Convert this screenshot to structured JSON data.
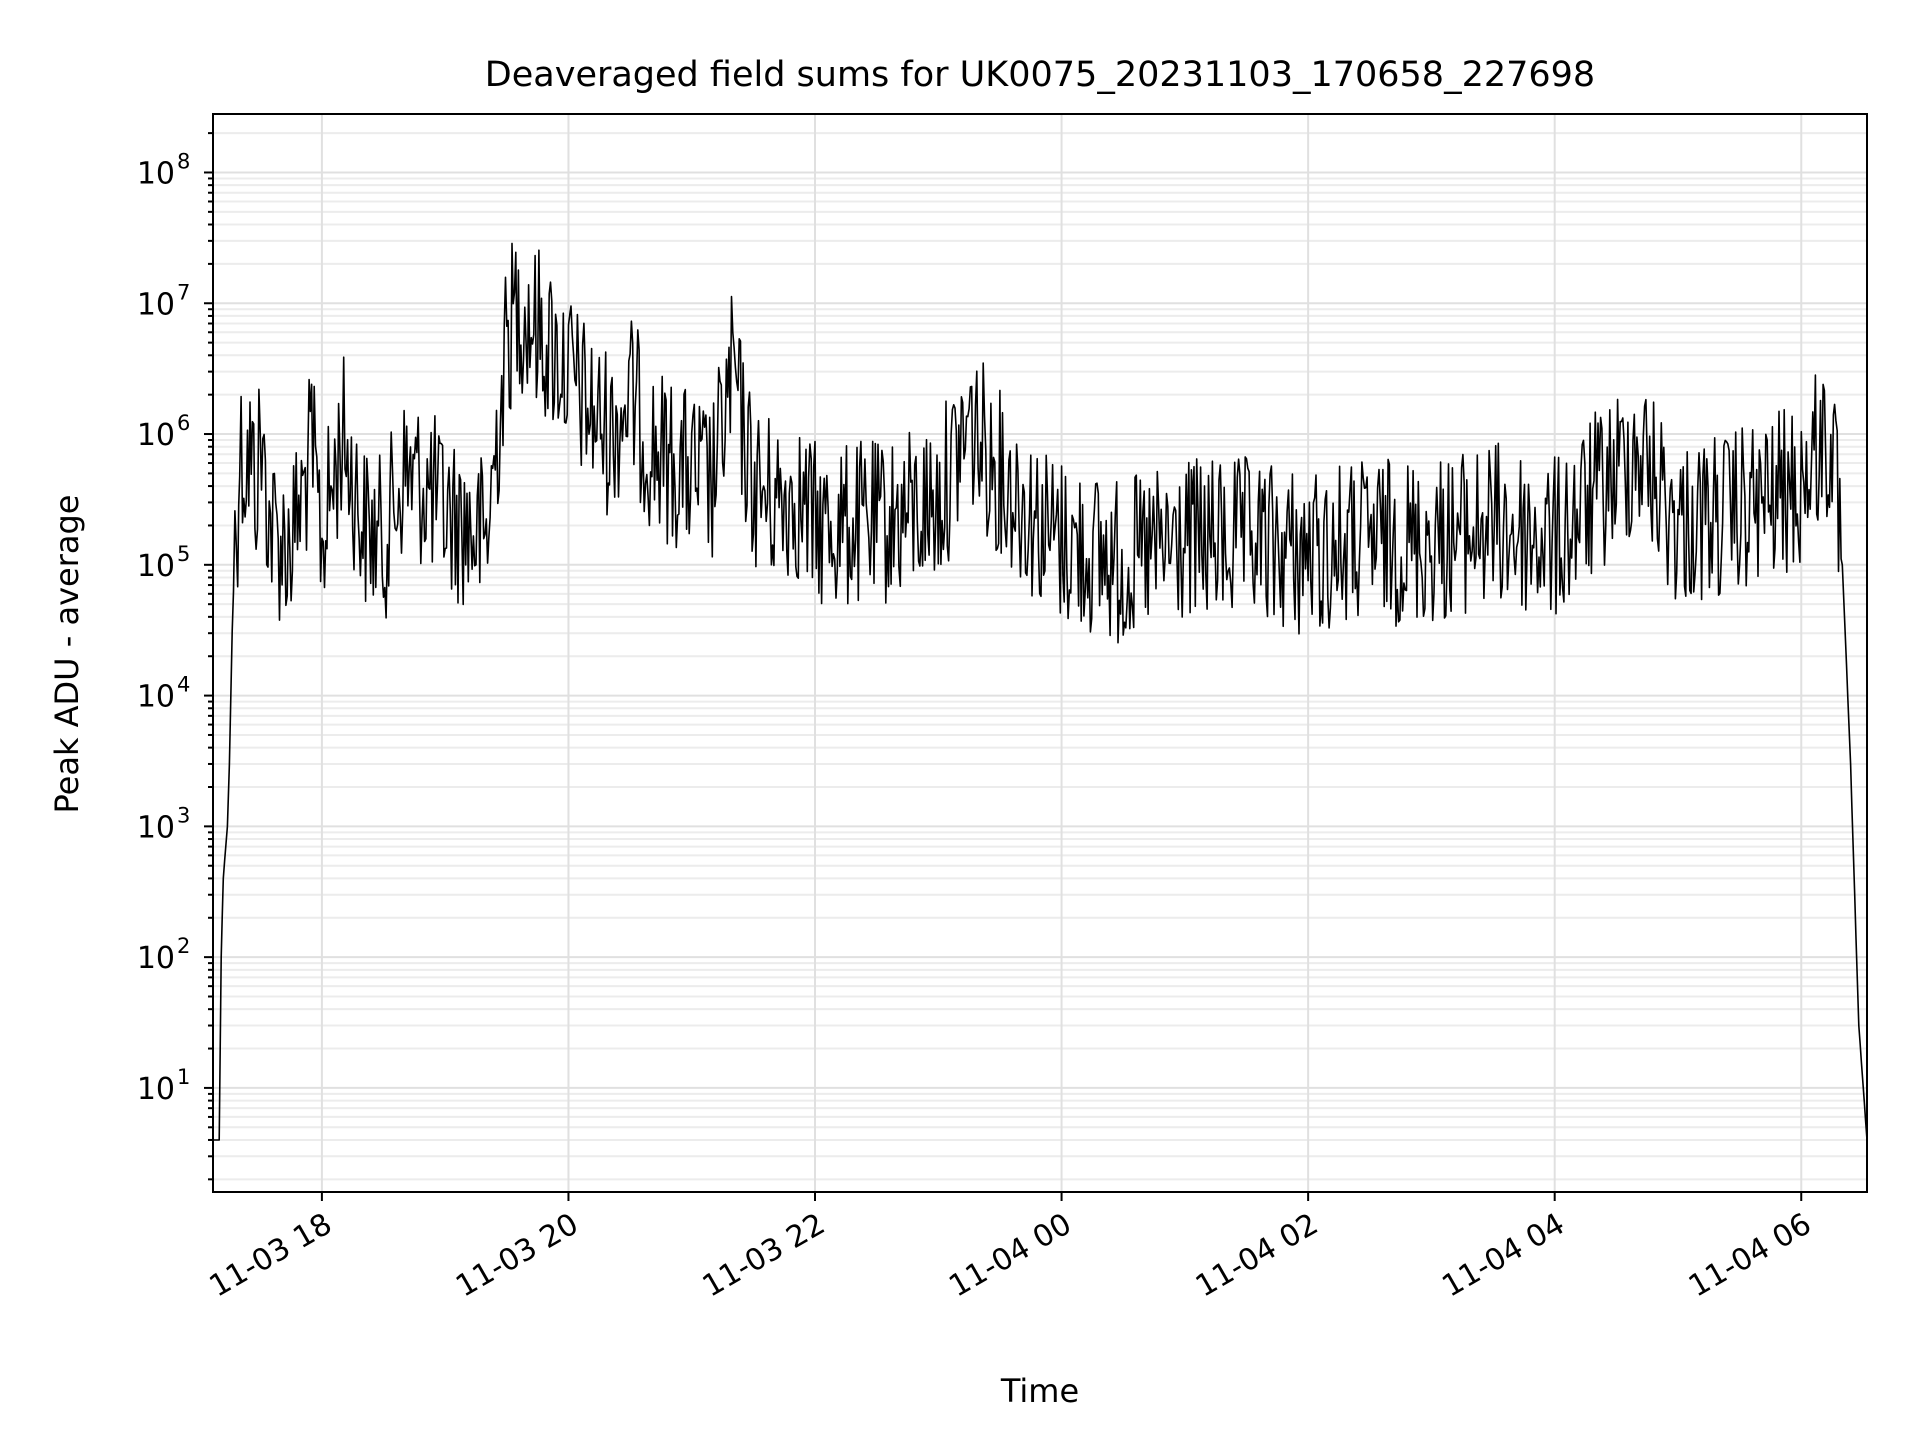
{
  "chart_data": {
    "type": "line",
    "title": "Deaveraged field sums for UK0075_20231103_170658_227698",
    "xlabel": "Time",
    "ylabel": "Peak ADU - average",
    "yscale": "log",
    "ylim": [
      1.6,
      280000000
    ],
    "xlim": [
      "2023-11-03 17:07",
      "2023-11-04 06:32"
    ],
    "x_ticks": [
      {
        "t": "2023-11-03 18:00",
        "label": "11-03 18"
      },
      {
        "t": "2023-11-03 20:00",
        "label": "11-03 20"
      },
      {
        "t": "2023-11-03 22:00",
        "label": "11-03 22"
      },
      {
        "t": "2023-11-04 00:00",
        "label": "11-04 00"
      },
      {
        "t": "2023-11-04 02:00",
        "label": "11-04 02"
      },
      {
        "t": "2023-11-04 04:00",
        "label": "11-04 04"
      },
      {
        "t": "2023-11-04 06:00",
        "label": "11-04 06"
      }
    ],
    "y_ticks": [
      {
        "value": 10,
        "base": "10",
        "exp": "1"
      },
      {
        "value": 100,
        "base": "10",
        "exp": "2"
      },
      {
        "value": 1000,
        "base": "10",
        "exp": "3"
      },
      {
        "value": 10000,
        "base": "10",
        "exp": "4"
      },
      {
        "value": 100000,
        "base": "10",
        "exp": "5"
      },
      {
        "value": 1000000,
        "base": "10",
        "exp": "6"
      },
      {
        "value": 10000000,
        "base": "10",
        "exp": "7"
      },
      {
        "value": 100000000,
        "base": "10",
        "exp": "8"
      }
    ],
    "grid": {
      "major": true,
      "minor_y": true
    },
    "line_color": "#000000",
    "series": [
      {
        "x": [
          "2023-11-03 17:07",
          "2023-11-03 17:10",
          "2023-11-03 17:11",
          "2023-11-03 17:12",
          "2023-11-03 17:14",
          "2023-11-03 17:15",
          "2023-11-03 17:17",
          "2023-11-03 17:19",
          "2023-11-03 17:20",
          "2023-11-03 17:22",
          "2023-11-03 17:25",
          "2023-11-03 17:28",
          "2023-11-03 17:30",
          "2023-11-03 17:35",
          "2023-11-03 17:40",
          "2023-11-03 17:45",
          "2023-11-03 17:50",
          "2023-11-03 17:55",
          "2023-11-03 18:00",
          "2023-11-03 18:10",
          "2023-11-03 18:20",
          "2023-11-03 18:30",
          "2023-11-03 18:40",
          "2023-11-03 18:50",
          "2023-11-03 19:00",
          "2023-11-03 19:10",
          "2023-11-03 19:20",
          "2023-11-03 19:30",
          "2023-11-03 19:35",
          "2023-11-03 19:40",
          "2023-11-03 19:50",
          "2023-11-03 20:00",
          "2023-11-03 20:10",
          "2023-11-03 20:20",
          "2023-11-03 20:30",
          "2023-11-03 20:40",
          "2023-11-03 20:50",
          "2023-11-03 21:00",
          "2023-11-03 21:10",
          "2023-11-03 21:20",
          "2023-11-03 21:25",
          "2023-11-03 21:30",
          "2023-11-03 21:40",
          "2023-11-03 21:50",
          "2023-11-03 22:00",
          "2023-11-03 22:30",
          "2023-11-03 23:00",
          "2023-11-03 23:15",
          "2023-11-03 23:30",
          "2023-11-03 23:50",
          "2023-11-04 00:00",
          "2023-11-04 00:30",
          "2023-11-04 01:00",
          "2023-11-04 01:30",
          "2023-11-04 02:00",
          "2023-11-04 02:30",
          "2023-11-04 03:00",
          "2023-11-04 03:30",
          "2023-11-04 04:00",
          "2023-11-04 04:30",
          "2023-11-04 04:40",
          "2023-11-04 05:00",
          "2023-11-04 05:30",
          "2023-11-04 06:00",
          "2023-11-04 06:10",
          "2023-11-04 06:15",
          "2023-11-04 06:20",
          "2023-11-04 06:24",
          "2023-11-04 06:26",
          "2023-11-04 06:28",
          "2023-11-04 06:32"
        ],
        "y": [
          4,
          4,
          100,
          400,
          1000,
          3000,
          100000,
          300000,
          800000,
          600000,
          700000,
          400000,
          900000,
          200000,
          150000,
          150000,
          300000,
          800000,
          150000,
          1000000,
          200000,
          150000,
          500000,
          400000,
          250000,
          200000,
          150000,
          5000000,
          10000000,
          8000000,
          5000000,
          3000000,
          1500000,
          1000000,
          2000000,
          800000,
          600000,
          500000,
          400000,
          3000000,
          1000000,
          400000,
          300000,
          350000,
          200000,
          200000,
          300000,
          1200000,
          500000,
          200000,
          150000,
          100000,
          150000,
          150000,
          120000,
          150000,
          150000,
          200000,
          150000,
          500000,
          800000,
          200000,
          250000,
          400000,
          900000,
          700000,
          100000,
          3000,
          300,
          30,
          4
        ]
      }
    ]
  }
}
